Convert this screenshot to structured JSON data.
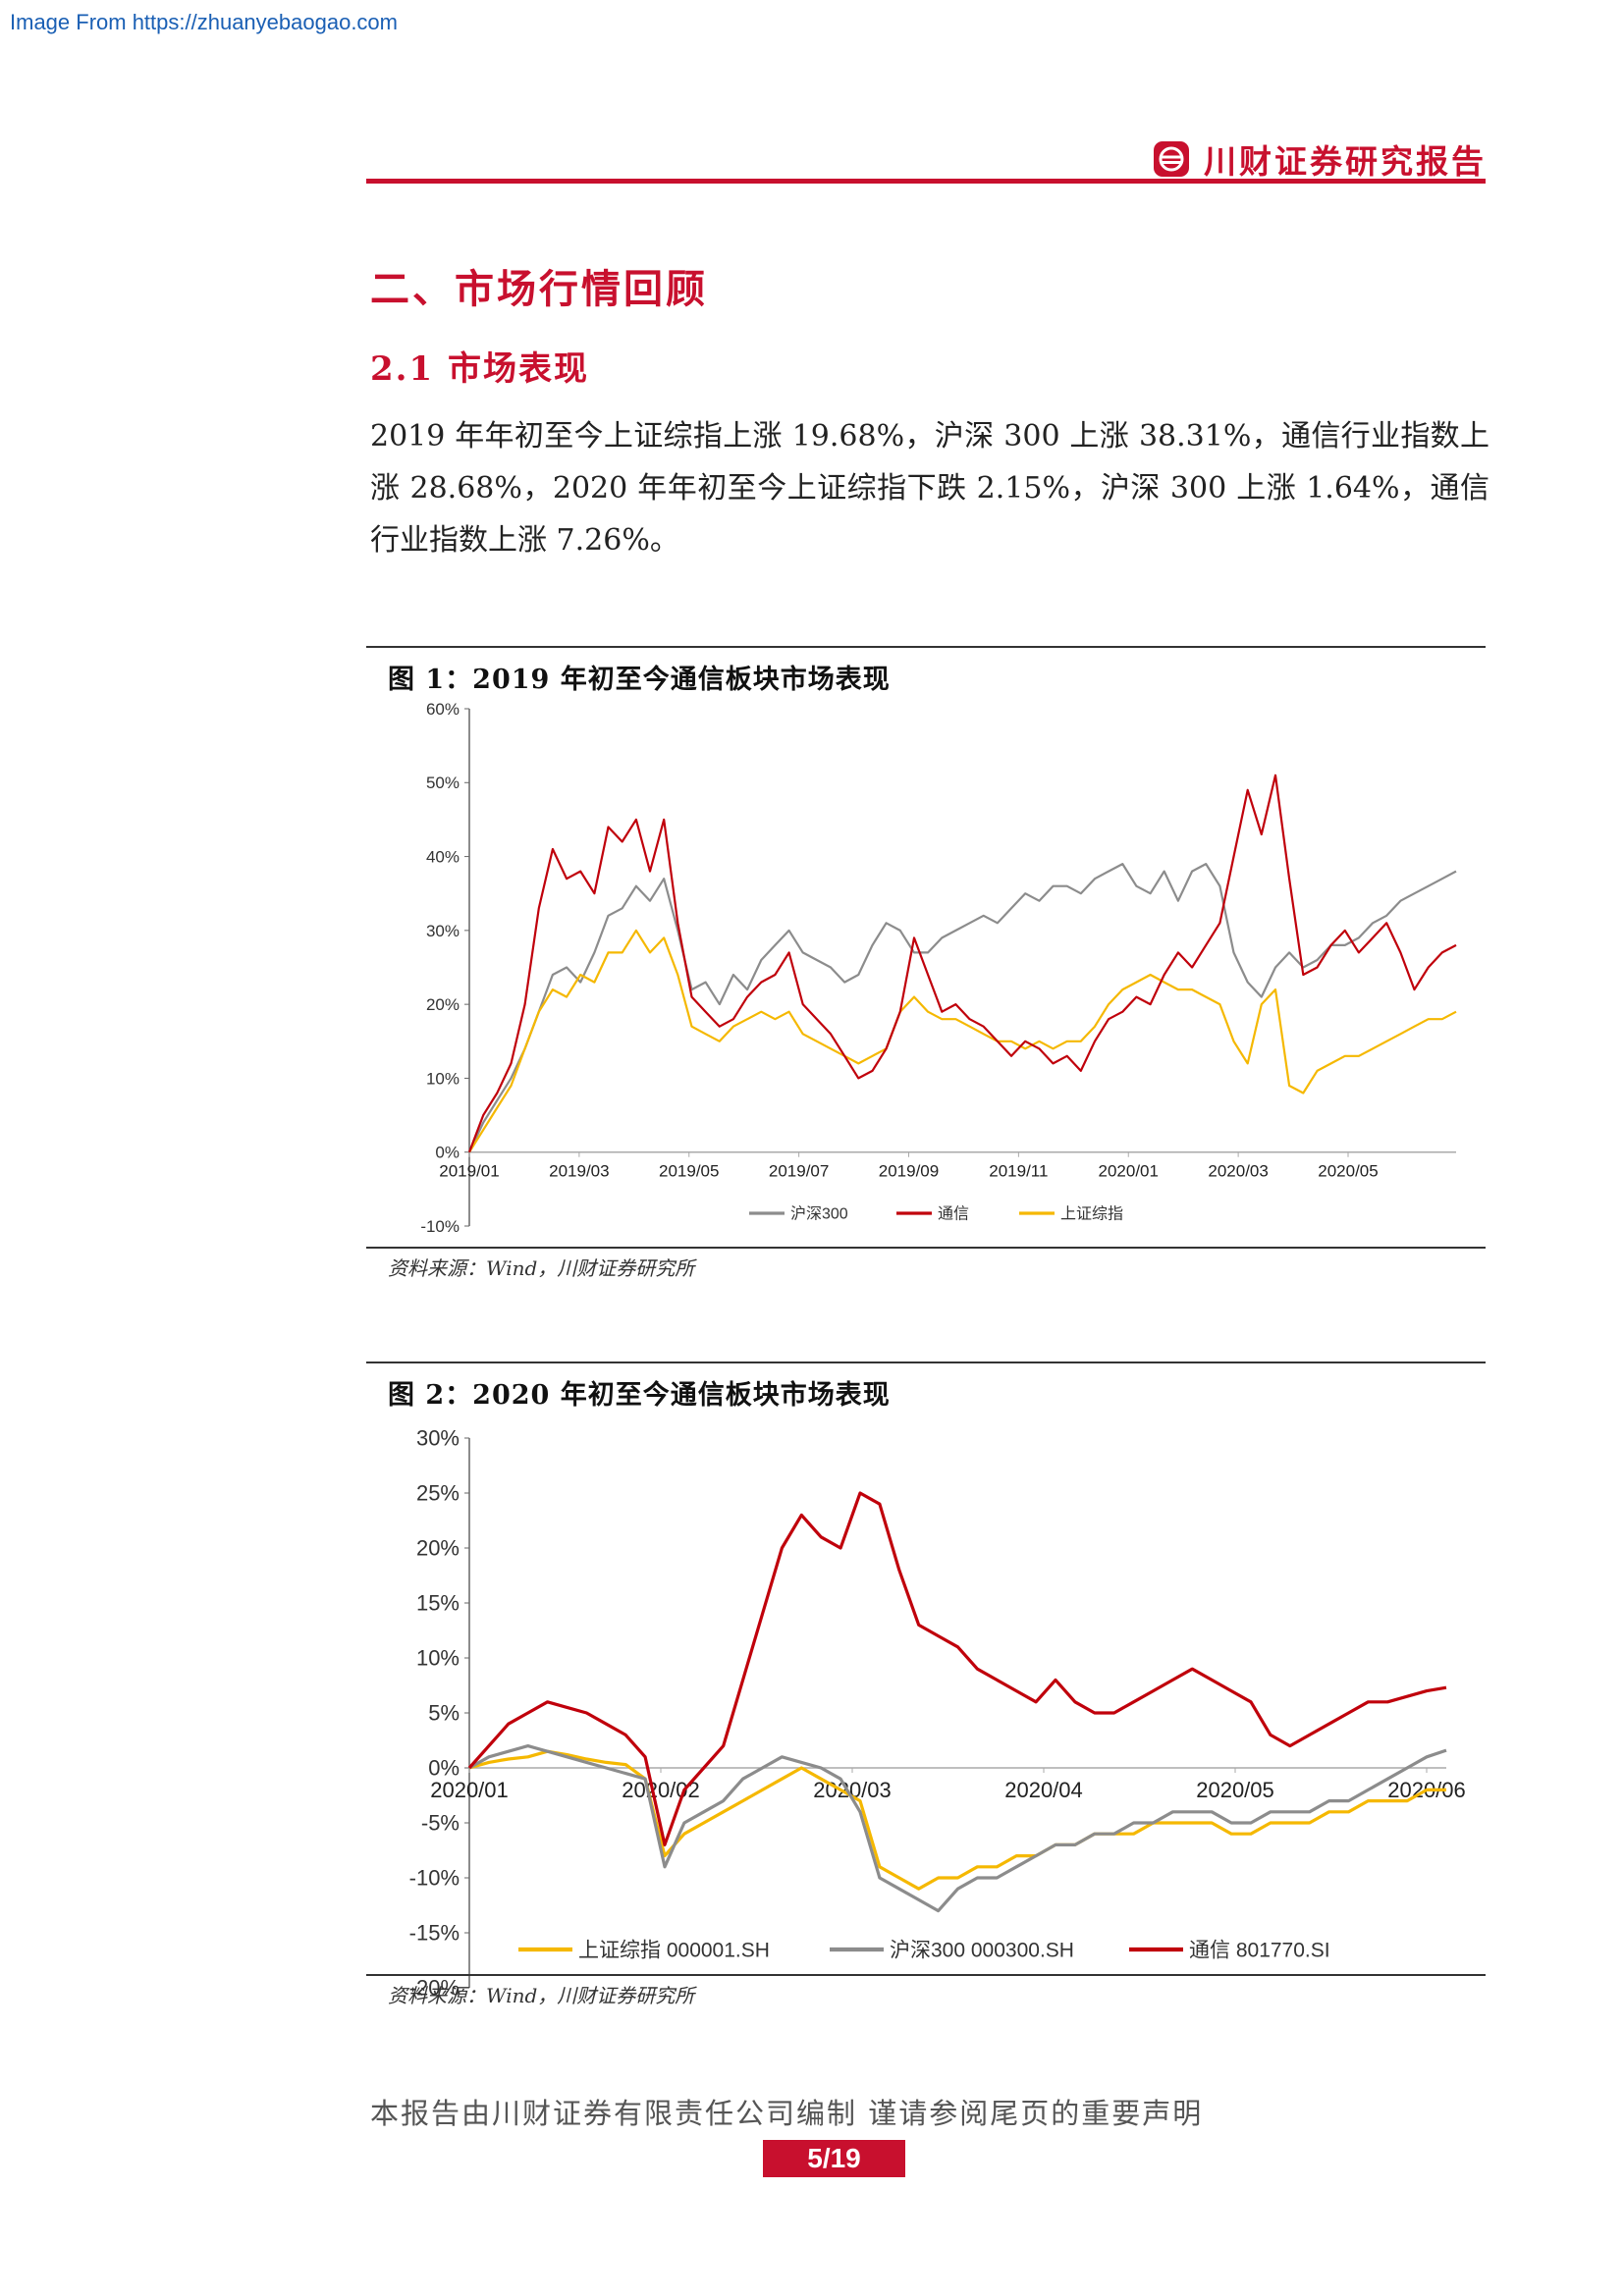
{
  "watermark": "Image From https://zhuanyebaogao.com",
  "header": {
    "brand": "川财证券研究报告"
  },
  "section_title": "二、市场行情回顾",
  "subsection_title": "2.1 市场表现",
  "paragraph": "2019 年年初至今上证综指上涨 19.68%，沪深 300 上涨 38.31%，通信行业指数上涨 28.68%，2020 年年初至今上证综指下跌 2.15%，沪深 300 上涨 1.64%，通信行业指数上涨 7.26%。",
  "colors": {
    "accent": "#c8102e",
    "gray": "#8c8c8c",
    "yellow": "#f5b800"
  },
  "chart_data": [
    {
      "type": "line",
      "title": "图 1：2019 年初至今通信板块市场表现",
      "source": "资料来源：Wind，川财证券研究所",
      "xlabels": [
        "2019/01",
        "2019/03",
        "2019/05",
        "2019/07",
        "2019/09",
        "2019/11",
        "2020/01",
        "2020/03",
        "2020/05"
      ],
      "ylim": [
        -10,
        60
      ],
      "yticks": [
        "60%",
        "50%",
        "40%",
        "30%",
        "20%",
        "10%",
        "0%",
        "-10%"
      ],
      "legend": "bottom",
      "series": [
        {
          "name": "沪深300",
          "color": "#8c8c8c",
          "values": [
            0,
            4,
            7,
            10,
            14,
            19,
            24,
            25,
            23,
            27,
            32,
            33,
            36,
            34,
            37,
            30,
            22,
            23,
            20,
            24,
            22,
            26,
            28,
            30,
            27,
            26,
            25,
            23,
            24,
            28,
            31,
            30,
            27,
            27,
            29,
            30,
            31,
            32,
            31,
            33,
            35,
            34,
            36,
            36,
            35,
            37,
            38,
            39,
            36,
            35,
            38,
            34,
            38,
            39,
            36,
            27,
            23,
            21,
            25,
            27,
            25,
            26,
            28,
            28,
            29,
            31,
            32,
            34,
            35,
            36,
            37,
            38
          ]
        },
        {
          "name": "通信",
          "color": "#c0000b",
          "values": [
            0,
            5,
            8,
            12,
            20,
            33,
            41,
            37,
            38,
            35,
            44,
            42,
            45,
            38,
            45,
            31,
            21,
            19,
            17,
            18,
            21,
            23,
            24,
            27,
            20,
            18,
            16,
            13,
            10,
            11,
            14,
            19,
            29,
            24,
            19,
            20,
            18,
            17,
            15,
            13,
            15,
            14,
            12,
            13,
            11,
            15,
            18,
            19,
            21,
            20,
            24,
            27,
            25,
            28,
            31,
            40,
            49,
            43,
            51,
            37,
            24,
            25,
            28,
            30,
            27,
            29,
            31,
            27,
            22,
            25,
            27,
            28
          ]
        },
        {
          "name": "上证综指",
          "color": "#f5b800",
          "values": [
            0,
            3,
            6,
            9,
            14,
            19,
            22,
            21,
            24,
            23,
            27,
            27,
            30,
            27,
            29,
            24,
            17,
            16,
            15,
            17,
            18,
            19,
            18,
            19,
            16,
            15,
            14,
            13,
            12,
            13,
            14,
            19,
            21,
            19,
            18,
            18,
            17,
            16,
            15,
            15,
            14,
            15,
            14,
            15,
            15,
            17,
            20,
            22,
            23,
            24,
            23,
            22,
            22,
            21,
            20,
            15,
            12,
            20,
            22,
            9,
            8,
            11,
            12,
            13,
            13,
            14,
            15,
            16,
            17,
            18,
            18,
            19
          ]
        }
      ]
    },
    {
      "type": "line",
      "title": "图 2：2020 年初至今通信板块市场表现",
      "source": "资料来源：Wind，川财证券研究所",
      "xlabels": [
        "2020/01",
        "2020/02",
        "2020/03",
        "2020/04",
        "2020/05",
        "2020/06"
      ],
      "ylim": [
        -20,
        30
      ],
      "yticks": [
        "30%",
        "25%",
        "20%",
        "15%",
        "10%",
        "5%",
        "0%",
        "-5%",
        "-10%",
        "-15%",
        "-20%"
      ],
      "legend": "bottom",
      "series": [
        {
          "name": "上证综指 000001.SH",
          "color": "#f5b800",
          "values": [
            0,
            0.5,
            0.8,
            1,
            1.5,
            1.2,
            0.8,
            0.5,
            0.3,
            -1,
            -8,
            -6,
            -5,
            -4,
            -3,
            -2,
            -1,
            0,
            -1,
            -2,
            -3,
            -9,
            -10,
            -11,
            -10,
            -10,
            -9,
            -9,
            -8,
            -8,
            -7,
            -7,
            -6,
            -6,
            -6,
            -5,
            -5,
            -5,
            -5,
            -6,
            -6,
            -5,
            -5,
            -5,
            -4,
            -4,
            -3,
            -3,
            -3,
            -2,
            -2
          ]
        },
        {
          "name": "沪深300 000300.SH",
          "color": "#8c8c8c",
          "values": [
            0,
            1,
            1.5,
            2,
            1.5,
            1,
            0.5,
            0,
            -0.5,
            -1,
            -9,
            -5,
            -4,
            -3,
            -1,
            0,
            1,
            0.5,
            0,
            -1,
            -4,
            -10,
            -11,
            -12,
            -13,
            -11,
            -10,
            -10,
            -9,
            -8,
            -7,
            -7,
            -6,
            -6,
            -5,
            -5,
            -4,
            -4,
            -4,
            -5,
            -5,
            -4,
            -4,
            -4,
            -3,
            -3,
            -2,
            -1,
            0,
            1,
            1.6
          ]
        },
        {
          "name": "通信 801770.SI",
          "color": "#c0000b",
          "values": [
            0,
            2,
            4,
            5,
            6,
            5.5,
            5,
            4,
            3,
            1,
            -7,
            -2,
            0,
            2,
            8,
            14,
            20,
            23,
            21,
            20,
            25,
            24,
            18,
            13,
            12,
            11,
            9,
            8,
            7,
            6,
            8,
            6,
            5,
            5,
            6,
            7,
            8,
            9,
            8,
            7,
            6,
            3,
            2,
            3,
            4,
            5,
            6,
            6,
            6.5,
            7,
            7.3
          ]
        }
      ]
    }
  ],
  "footer": {
    "note": "本报告由川财证券有限责任公司编制  谨请参阅尾页的重要声明",
    "page": "5/19"
  }
}
